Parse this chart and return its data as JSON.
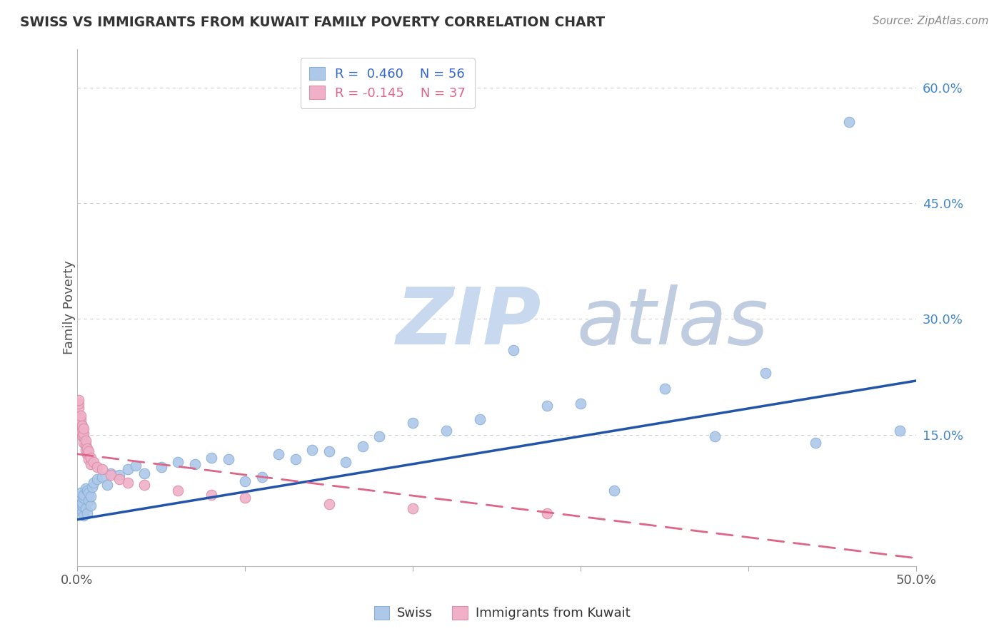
{
  "title": "SWISS VS IMMIGRANTS FROM KUWAIT FAMILY POVERTY CORRELATION CHART",
  "source_text": "Source: ZipAtlas.com",
  "ylabel": "Family Poverty",
  "x_min": 0.0,
  "x_max": 0.5,
  "y_min": -0.02,
  "y_max": 0.65,
  "y_ticks_right": [
    0.15,
    0.3,
    0.45,
    0.6
  ],
  "y_tick_labels_right": [
    "15.0%",
    "30.0%",
    "45.0%",
    "60.0%"
  ],
  "grid_color": "#cccccc",
  "background_color": "#ffffff",
  "swiss_color": "#adc8e8",
  "swiss_edge_color": "#8ab0d8",
  "kuwait_color": "#f0b0c8",
  "kuwait_edge_color": "#d890a8",
  "swiss_R": 0.46,
  "swiss_N": 56,
  "kuwait_R": -0.145,
  "kuwait_N": 37,
  "swiss_line_color": "#2255aa",
  "kuwait_line_color": "#dd6688",
  "watermark_zip_color": "#c8d8ee",
  "watermark_atlas_color": "#c0cce0",
  "legend_R_color": "#3366cc",
  "legend_label1": "Swiss",
  "legend_label2": "Immigrants from Kuwait",
  "swiss_x": [
    0.001,
    0.001,
    0.002,
    0.002,
    0.002,
    0.003,
    0.003,
    0.003,
    0.004,
    0.004,
    0.004,
    0.005,
    0.005,
    0.006,
    0.006,
    0.007,
    0.007,
    0.008,
    0.008,
    0.009,
    0.01,
    0.012,
    0.015,
    0.018,
    0.02,
    0.025,
    0.03,
    0.035,
    0.04,
    0.05,
    0.06,
    0.07,
    0.08,
    0.09,
    0.1,
    0.11,
    0.12,
    0.13,
    0.14,
    0.15,
    0.16,
    0.17,
    0.18,
    0.2,
    0.22,
    0.24,
    0.26,
    0.28,
    0.3,
    0.32,
    0.35,
    0.38,
    0.41,
    0.44,
    0.46,
    0.49
  ],
  "swiss_y": [
    0.055,
    0.065,
    0.06,
    0.07,
    0.075,
    0.05,
    0.058,
    0.062,
    0.068,
    0.045,
    0.072,
    0.08,
    0.055,
    0.078,
    0.048,
    0.065,
    0.075,
    0.058,
    0.07,
    0.082,
    0.088,
    0.092,
    0.095,
    0.085,
    0.1,
    0.098,
    0.105,
    0.11,
    0.1,
    0.108,
    0.115,
    0.112,
    0.12,
    0.118,
    0.09,
    0.095,
    0.125,
    0.118,
    0.13,
    0.128,
    0.115,
    0.135,
    0.148,
    0.165,
    0.155,
    0.17,
    0.26,
    0.188,
    0.19,
    0.078,
    0.21,
    0.148,
    0.23,
    0.14,
    0.555,
    0.155
  ],
  "kuwait_x": [
    0.001,
    0.001,
    0.001,
    0.001,
    0.002,
    0.002,
    0.002,
    0.002,
    0.003,
    0.003,
    0.003,
    0.004,
    0.004,
    0.004,
    0.004,
    0.005,
    0.005,
    0.005,
    0.006,
    0.006,
    0.007,
    0.007,
    0.008,
    0.008,
    0.01,
    0.012,
    0.015,
    0.02,
    0.025,
    0.03,
    0.04,
    0.06,
    0.08,
    0.1,
    0.15,
    0.2,
    0.28
  ],
  "kuwait_y": [
    0.175,
    0.185,
    0.19,
    0.195,
    0.155,
    0.165,
    0.17,
    0.175,
    0.148,
    0.158,
    0.162,
    0.14,
    0.148,
    0.152,
    0.158,
    0.13,
    0.138,
    0.142,
    0.125,
    0.132,
    0.118,
    0.128,
    0.112,
    0.12,
    0.115,
    0.108,
    0.105,
    0.098,
    0.092,
    0.088,
    0.085,
    0.078,
    0.072,
    0.068,
    0.06,
    0.055,
    0.048
  ],
  "swiss_line_x": [
    0.0,
    0.5
  ],
  "swiss_line_y": [
    0.04,
    0.22
  ],
  "kuwait_line_x": [
    0.0,
    0.5
  ],
  "kuwait_line_y": [
    0.125,
    -0.01
  ]
}
